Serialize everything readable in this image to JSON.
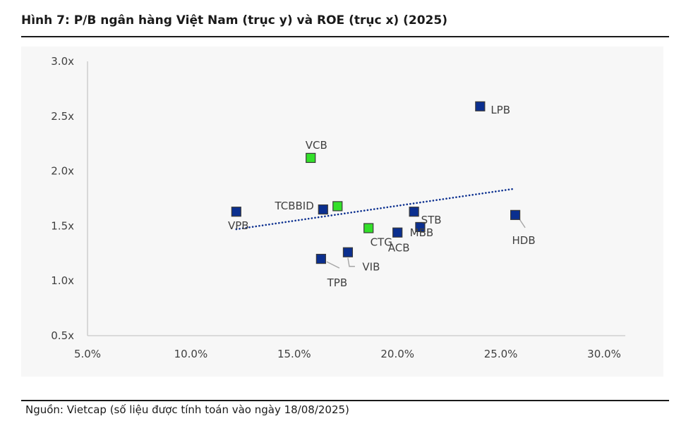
{
  "figure": {
    "title": "Hình 7: P/B ngân hàng Việt Nam (trục y) và ROE (trục x) (2025)",
    "source": "Nguồn: Vietcap (số liệu được tính toán vào ngày 18/08/2025)"
  },
  "chart_data": {
    "type": "scatter",
    "title": "Hình 7: P/B ngân hàng Việt Nam (trục y) và ROE (trục x) (2025)",
    "xlabel": "",
    "ylabel": "",
    "xlim": [
      5.0,
      30.0
    ],
    "ylim": [
      0.5,
      3.0
    ],
    "x_ticks": [
      5,
      10,
      15,
      20,
      25,
      30
    ],
    "x_tick_labels": [
      "5.0%",
      "10.0%",
      "15.0%",
      "20.0%",
      "25.0%",
      "30.0%"
    ],
    "y_ticks": [
      0.5,
      1.0,
      1.5,
      2.0,
      2.5,
      3.0
    ],
    "y_tick_labels": [
      "0.5x",
      "1.0x",
      "1.5x",
      "2.0x",
      "2.5x",
      "3.0x"
    ],
    "grid": false,
    "legend": "none",
    "colors": {
      "default_marker": "#0b2f8f",
      "highlight_marker": "#33e02a",
      "marker_border": "#3a3a3a",
      "trendline": "#0b2f8f"
    },
    "points": [
      {
        "label": "LPB",
        "x": 24.0,
        "y": 2.59,
        "highlight": false
      },
      {
        "label": "VCB",
        "x": 15.8,
        "y": 2.12,
        "highlight": true
      },
      {
        "label": "VPB",
        "x": 12.2,
        "y": 1.63,
        "highlight": false
      },
      {
        "label": "TCB",
        "x": 16.4,
        "y": 1.65,
        "highlight": false
      },
      {
        "label": "BID",
        "x": 17.1,
        "y": 1.68,
        "highlight": true
      },
      {
        "label": "CTG",
        "x": 18.6,
        "y": 1.48,
        "highlight": true
      },
      {
        "label": "STB",
        "x": 20.8,
        "y": 1.63,
        "highlight": false
      },
      {
        "label": "MBB",
        "x": 21.1,
        "y": 1.49,
        "highlight": false
      },
      {
        "label": "ACB",
        "x": 20.0,
        "y": 1.44,
        "highlight": false
      },
      {
        "label": "HDB",
        "x": 25.7,
        "y": 1.6,
        "highlight": false
      },
      {
        "label": "TPB",
        "x": 16.3,
        "y": 1.2,
        "highlight": false
      },
      {
        "label": "VIB",
        "x": 17.6,
        "y": 1.26,
        "highlight": false
      }
    ],
    "trendline": {
      "style": "dotted",
      "x": [
        12.2,
        25.7
      ],
      "y": [
        1.47,
        1.84
      ]
    }
  }
}
